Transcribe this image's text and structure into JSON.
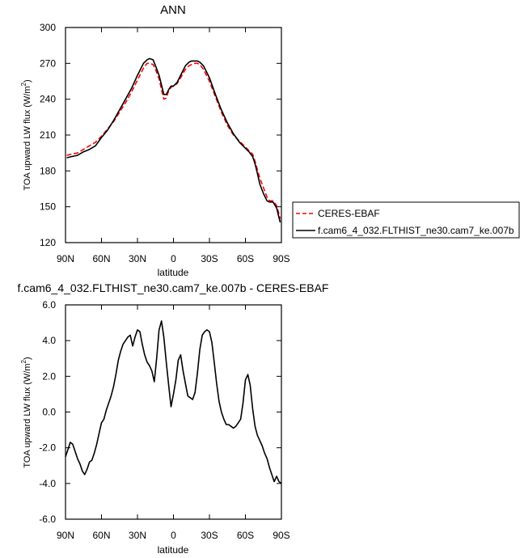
{
  "chart_data": [
    {
      "type": "line",
      "title": "ANN",
      "xlabel": "latitude",
      "ylabel": "TOA upward LW flux (W/m",
      "ylabel_sup": "2",
      "ylabel_close": ")",
      "xlim": [
        90,
        -90
      ],
      "ylim": [
        120,
        300
      ],
      "xticks": [
        90,
        60,
        30,
        0,
        -30,
        -60,
        -90
      ],
      "xtick_labels": [
        "90N",
        "60N",
        "30N",
        "0",
        "30S",
        "60S",
        "90S"
      ],
      "yticks": [
        120,
        150,
        180,
        210,
        240,
        270,
        300
      ],
      "ytick_labels": [
        "120",
        "150",
        "180",
        "210",
        "240",
        "270",
        "300"
      ],
      "grid": false,
      "legend": "right",
      "series": [
        {
          "name": "CERES-EBAF",
          "color": "#ff0000",
          "dash": true,
          "x": [
            89,
            85,
            80,
            75,
            70,
            65,
            60,
            55,
            50,
            45,
            40,
            35,
            30,
            25,
            22,
            20,
            17,
            15,
            12,
            10,
            8,
            6,
            4,
            2,
            0,
            -3,
            -6,
            -10,
            -13,
            -15,
            -18,
            -20,
            -22,
            -25,
            -30,
            -35,
            -40,
            -45,
            -50,
            -55,
            -60,
            -63,
            -66,
            -68,
            -70,
            -72,
            -75,
            -78,
            -80,
            -83,
            -86,
            -88,
            -89
          ],
          "y": [
            193,
            194,
            195,
            198,
            201,
            204,
            209,
            215,
            221,
            229,
            237,
            246,
            256,
            266,
            270,
            270,
            269,
            265,
            257,
            248,
            240,
            241,
            247,
            250,
            251,
            253,
            258,
            265,
            268,
            269,
            270,
            270,
            269,
            265,
            255,
            242,
            229,
            218,
            210,
            205,
            200,
            197,
            194,
            188,
            181,
            174,
            166,
            158,
            155,
            155,
            151,
            144,
            140
          ]
        },
        {
          "name": "f.cam6_4_032.FLTHIST_ne30.cam7_ke.007b",
          "color": "#000000",
          "dash": false,
          "x": [
            89,
            85,
            80,
            75,
            70,
            65,
            60,
            55,
            50,
            45,
            40,
            35,
            30,
            25,
            22,
            20,
            17,
            15,
            12,
            10,
            8,
            6,
            4,
            2,
            0,
            -3,
            -6,
            -10,
            -13,
            -15,
            -18,
            -20,
            -22,
            -25,
            -30,
            -35,
            -40,
            -45,
            -50,
            -55,
            -60,
            -63,
            -66,
            -68,
            -70,
            -72,
            -75,
            -78,
            -80,
            -83,
            -86,
            -88,
            -89
          ],
          "y": [
            191,
            192,
            193,
            196,
            198,
            201,
            208,
            214,
            222,
            231,
            240,
            249,
            260,
            270,
            273,
            274,
            273,
            268,
            260,
            252,
            244,
            244,
            248,
            251,
            251,
            254,
            260,
            268,
            271,
            272,
            272,
            272,
            271,
            268,
            258,
            244,
            231,
            220,
            211,
            204,
            199,
            196,
            192,
            186,
            178,
            169,
            161,
            155,
            154,
            154,
            149,
            141,
            137
          ]
        }
      ]
    },
    {
      "type": "line",
      "title": "f.cam6_4_032.FLTHIST_ne30.cam7_ke.007b - CERES-EBAF",
      "xlabel": "latitude",
      "ylabel": "TOA upward LW flux (W/m",
      "ylabel_sup": "2",
      "ylabel_close": ")",
      "xlim": [
        90,
        -90
      ],
      "ylim": [
        -6,
        6
      ],
      "xticks": [
        90,
        60,
        30,
        0,
        -30,
        -60,
        -90
      ],
      "xtick_labels": [
        "90N",
        "60N",
        "30N",
        "0",
        "30S",
        "60S",
        "90S"
      ],
      "yticks": [
        -6,
        -4,
        -2,
        0,
        2,
        4,
        6
      ],
      "ytick_labels": [
        "-6.0",
        "-4.0",
        "-2.0",
        "0.0",
        "2.0",
        "4.0",
        "6.0"
      ],
      "grid": false,
      "series": [
        {
          "color": "#000000",
          "x": [
            90,
            88,
            86,
            84,
            82,
            80,
            78,
            76,
            74,
            72,
            70,
            68,
            66,
            64,
            62,
            60,
            58,
            56,
            54,
            52,
            50,
            48,
            46,
            44,
            42,
            40,
            38,
            36,
            34,
            32,
            30,
            28,
            26,
            24,
            22,
            20,
            18,
            16,
            14,
            12,
            10,
            8,
            6,
            4,
            2,
            0,
            -2,
            -4,
            -6,
            -8,
            -10,
            -12,
            -14,
            -16,
            -18,
            -20,
            -22,
            -24,
            -26,
            -28,
            -30,
            -32,
            -34,
            -36,
            -38,
            -40,
            -42,
            -44,
            -46,
            -48,
            -50,
            -52,
            -54,
            -56,
            -58,
            -60,
            -62,
            -64,
            -66,
            -68,
            -70,
            -72,
            -74,
            -76,
            -78,
            -80,
            -82,
            -84,
            -86,
            -88,
            -90
          ],
          "y": [
            -2.5,
            -2.1,
            -1.7,
            -1.8,
            -2.2,
            -2.6,
            -2.9,
            -3.3,
            -3.5,
            -3.2,
            -2.8,
            -2.7,
            -2.3,
            -1.8,
            -1.2,
            -0.6,
            -0.4,
            0.1,
            0.5,
            0.9,
            1.4,
            2.1,
            2.9,
            3.4,
            3.8,
            4.0,
            4.2,
            4.3,
            3.7,
            4.2,
            4.6,
            4.5,
            3.8,
            3.2,
            2.8,
            2.6,
            2.3,
            1.7,
            3.0,
            4.6,
            5.1,
            4.2,
            2.8,
            1.5,
            0.3,
            1.0,
            1.8,
            2.9,
            3.2,
            2.3,
            1.6,
            0.9,
            0.8,
            0.7,
            1.1,
            2.2,
            3.5,
            4.3,
            4.5,
            4.6,
            4.5,
            3.9,
            2.8,
            1.6,
            0.6,
            0.0,
            -0.4,
            -0.7,
            -0.7,
            -0.8,
            -0.9,
            -0.8,
            -0.6,
            -0.4,
            0.5,
            1.8,
            2.1,
            1.5,
            0.2,
            -0.8,
            -1.3,
            -1.6,
            -1.9,
            -2.3,
            -2.6,
            -3.1,
            -3.5,
            -3.9,
            -3.6,
            -3.9,
            -4.0
          ]
        }
      ]
    }
  ],
  "legend_entries": [
    "CERES-EBAF",
    "f.cam6_4_032.FLTHIST_ne30.cam7_ke.007b"
  ]
}
